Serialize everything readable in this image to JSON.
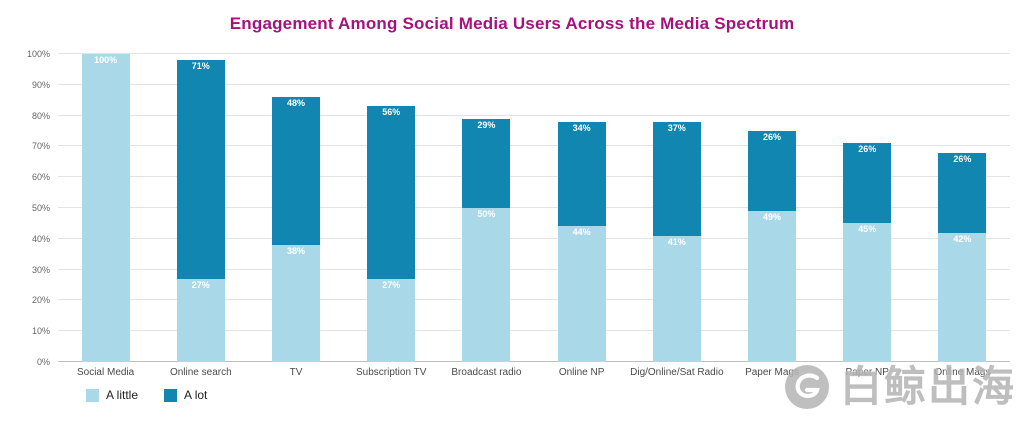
{
  "title": "Engagement Among Social Media Users Across the Media Spectrum",
  "colors": {
    "title": "#a7117d",
    "a_little": "#a9d9e9",
    "a_lot": "#1186b0",
    "grid": "#e3e3e3"
  },
  "watermark": {
    "text": "白鲸出海",
    "logo": "whale-logo"
  },
  "chart_data": {
    "type": "stacked-bar",
    "title": "Engagement Among Social Media Users Across the Media Spectrum",
    "categories": [
      "Social Media",
      "Online search",
      "TV",
      "Subscription TV",
      "Broadcast radio",
      "Online NP",
      "Dig/Online/Sat Radio",
      "Paper Mags",
      "Paper NP",
      "Online Mags"
    ],
    "series": [
      {
        "name": "A little",
        "color": "#a9d9e9",
        "values": [
          100,
          27,
          38,
          27,
          50,
          44,
          41,
          49,
          45,
          42
        ]
      },
      {
        "name": "A lot",
        "color": "#1186b0",
        "values": [
          0,
          71,
          48,
          56,
          29,
          34,
          37,
          26,
          26,
          26
        ]
      }
    ],
    "totals": [
      100,
      98,
      86,
      83,
      79,
      78,
      78,
      75,
      71,
      68
    ],
    "ylabel": "",
    "xlabel": "",
    "ylim": [
      0,
      100
    ],
    "y_ticks": [
      "0%",
      "10%",
      "20%",
      "30%",
      "40%",
      "50%",
      "60%",
      "70%",
      "80%",
      "90%",
      "100%"
    ],
    "grid": true,
    "legend_position": "bottom-left",
    "data_labels": "percent-in-segment"
  }
}
